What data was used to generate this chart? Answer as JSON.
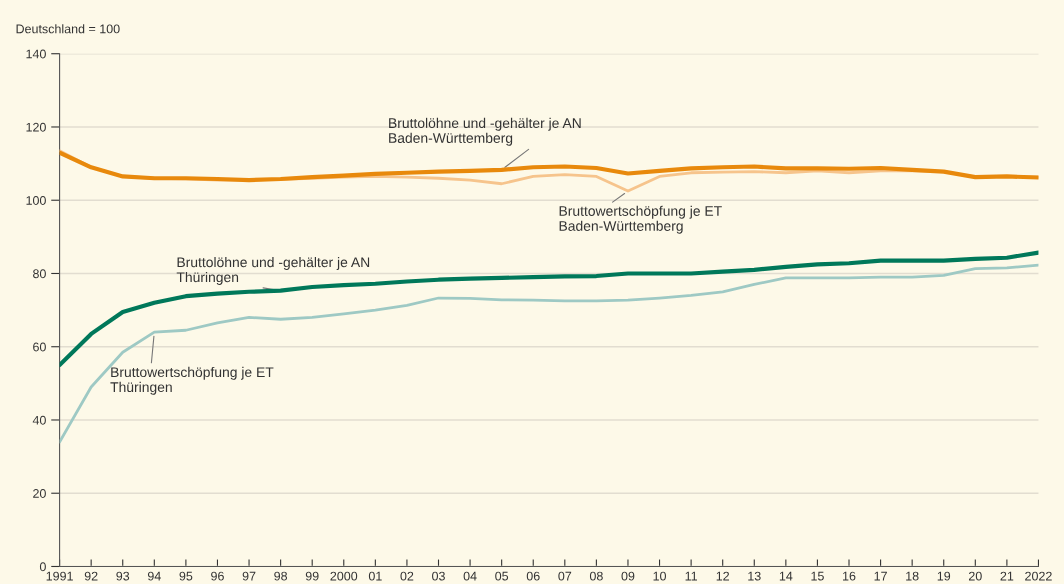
{
  "chart_data": {
    "type": "line",
    "ylabel": "Deutschland = 100",
    "x": [
      1991,
      1992,
      1993,
      1994,
      1995,
      1996,
      1997,
      1998,
      1999,
      2000,
      2001,
      2002,
      2003,
      2004,
      2005,
      2006,
      2007,
      2008,
      2009,
      2010,
      2011,
      2012,
      2013,
      2014,
      2015,
      2016,
      2017,
      2018,
      2019,
      2020,
      2021,
      2022
    ],
    "series": [
      {
        "name": "Bruttolöhne und -gehälter je AN\nBaden-Württemberg",
        "color": "#e8890c",
        "values": [
          113,
          109,
          106.5,
          106,
          106,
          105.8,
          105.5,
          105.8,
          106.3,
          106.7,
          107.2,
          107.5,
          107.8,
          108,
          108.3,
          109,
          109.2,
          108.8,
          107.3,
          108,
          108.7,
          109,
          109.2,
          108.7,
          108.7,
          108.6,
          108.8,
          108.3,
          107.8,
          106.3,
          106.5,
          106.2
        ]
      },
      {
        "name": "Bruttowertschöpfung je ET\nBaden-Württemberg",
        "color": "#f6c48c",
        "values": [
          113.5,
          109,
          106.5,
          106,
          105.8,
          105.5,
          105.5,
          105.7,
          106,
          106.3,
          106.5,
          106.3,
          106,
          105.5,
          104.5,
          106.5,
          107,
          106.5,
          102.5,
          106.5,
          107.5,
          107.7,
          107.8,
          107.5,
          108,
          107.5,
          108,
          108,
          107.8,
          106.3,
          106.5,
          106.3
        ]
      },
      {
        "name": "Bruttolöhne und -gehälter je AN\nThüringen",
        "color": "#00785a",
        "values": [
          55,
          63.5,
          69.5,
          72,
          73.8,
          74.5,
          75,
          75.3,
          76.3,
          76.8,
          77.2,
          77.8,
          78.3,
          78.6,
          78.8,
          79,
          79.2,
          79.3,
          80,
          80,
          80,
          80.5,
          81,
          81.8,
          82.5,
          82.8,
          83.5,
          83.5,
          83.5,
          84,
          84.3,
          85.7
        ]
      },
      {
        "name": "Bruttowertschöpfung je ET\nThüringen",
        "color": "#9ec9c4",
        "values": [
          34,
          49,
          58.5,
          64,
          64.5,
          66.5,
          68,
          67.5,
          68,
          69,
          70,
          71.3,
          73.3,
          73.2,
          72.8,
          72.7,
          72.5,
          72.5,
          72.7,
          73.3,
          74,
          75,
          77,
          78.8,
          78.8,
          78.8,
          79,
          79,
          79.5,
          81.3,
          81.5,
          82.3
        ]
      }
    ],
    "xlim": [
      1991,
      2022
    ],
    "xticks": [
      1991,
      {
        "value": 1992,
        "label": "92"
      },
      {
        "value": 1993,
        "label": "93"
      },
      {
        "value": 1994,
        "label": "94"
      },
      {
        "value": 1995,
        "label": "95"
      },
      {
        "value": 1996,
        "label": "96"
      },
      {
        "value": 1997,
        "label": "97"
      },
      {
        "value": 1998,
        "label": "98"
      },
      {
        "value": 1999,
        "label": "99"
      },
      2000,
      {
        "value": 2001,
        "label": "01"
      },
      {
        "value": 2002,
        "label": "02"
      },
      {
        "value": 2003,
        "label": "03"
      },
      {
        "value": 2004,
        "label": "04"
      },
      {
        "value": 2005,
        "label": "05"
      },
      {
        "value": 2006,
        "label": "06"
      },
      {
        "value": 2007,
        "label": "07"
      },
      {
        "value": 2008,
        "label": "08"
      },
      {
        "value": 2009,
        "label": "09"
      },
      {
        "value": 2010,
        "label": "10"
      },
      {
        "value": 2011,
        "label": "11"
      },
      {
        "value": 2012,
        "label": "12"
      },
      {
        "value": 2013,
        "label": "13"
      },
      {
        "value": 2014,
        "label": "14"
      },
      {
        "value": 2015,
        "label": "15"
      },
      {
        "value": 2016,
        "label": "16"
      },
      {
        "value": 2017,
        "label": "17"
      },
      {
        "value": 2018,
        "label": "18"
      },
      {
        "value": 2019,
        "label": "19"
      },
      {
        "value": 2020,
        "label": "20"
      },
      {
        "value": 2021,
        "label": "21"
      },
      2022
    ],
    "ylim": [
      0,
      140
    ],
    "yticks": [
      0,
      20,
      40,
      60,
      80,
      100,
      120,
      140
    ],
    "grid": "y",
    "legend": false,
    "marker": "none",
    "line_style": "solid"
  }
}
